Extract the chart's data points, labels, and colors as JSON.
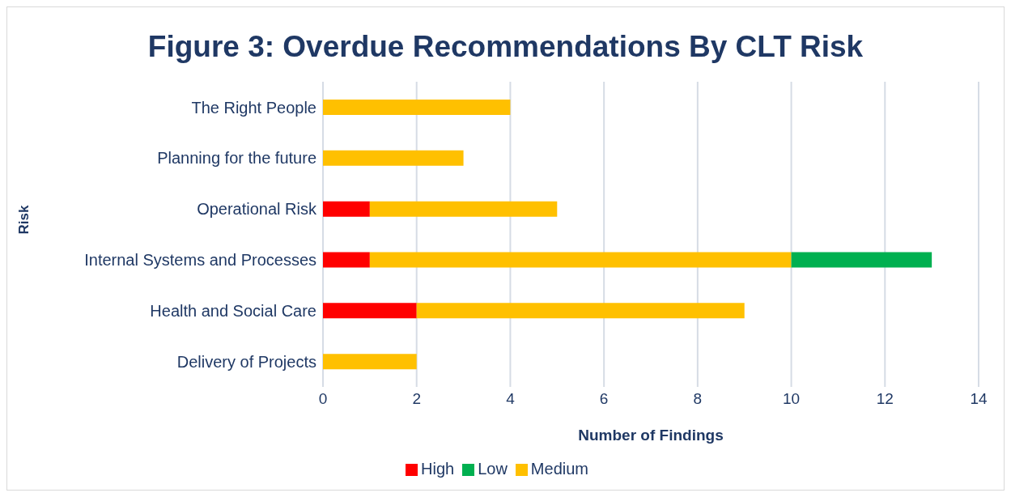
{
  "chart_data": {
    "type": "bar",
    "orientation": "horizontal",
    "stacked": true,
    "title": "Figure 3: Overdue Recommendations By CLT Risk",
    "xlabel": "Number of Findings",
    "ylabel": "Risk",
    "categories": [
      "The Right People",
      "Planning for the future",
      "Operational Risk",
      "Internal Systems and Processes",
      "Health and Social Care",
      "Delivery of Projects"
    ],
    "series": [
      {
        "name": "High",
        "color": "#ff0000",
        "values": [
          null,
          null,
          1,
          1,
          2,
          null
        ]
      },
      {
        "name": "Medium",
        "color": "#ffc000",
        "values": [
          4,
          3,
          4,
          9,
          7,
          2
        ]
      },
      {
        "name": "Low",
        "color": "#00b050",
        "values": [
          null,
          null,
          null,
          3,
          null,
          null
        ]
      }
    ],
    "xlim": [
      0,
      14
    ],
    "xticks": [
      0,
      2,
      4,
      6,
      8,
      10,
      12,
      14
    ],
    "grid": "x",
    "legend": "bottom"
  }
}
